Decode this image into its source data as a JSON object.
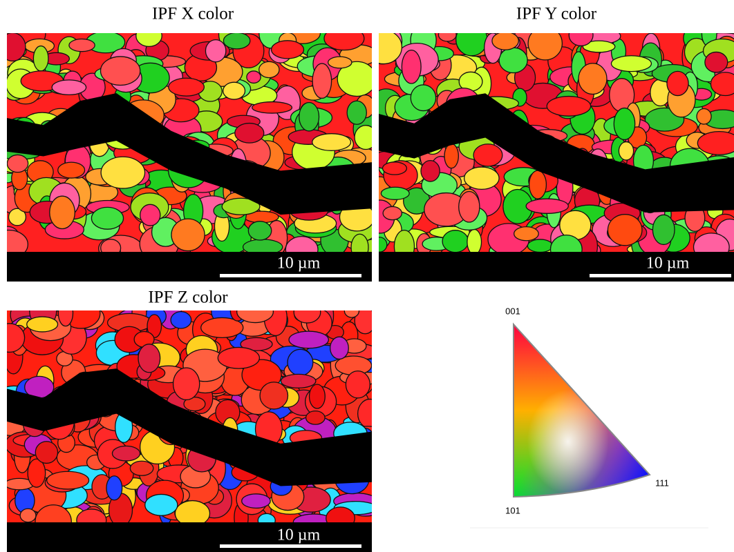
{
  "panels": [
    {
      "title": "IPF X color",
      "scale_label": "10 µm"
    },
    {
      "title": "IPF Y color",
      "scale_label": "10 µm"
    },
    {
      "title": "IPF Z color",
      "scale_label": "10 µm"
    }
  ],
  "legend": {
    "labels": [
      "001",
      "101",
      "111"
    ]
  }
}
